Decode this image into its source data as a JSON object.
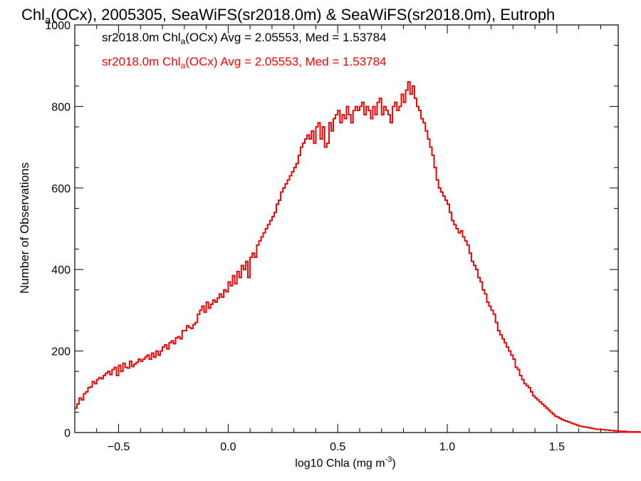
{
  "chart_data": {
    "type": "histogram",
    "title_main": "Chl",
    "title_sub": "a",
    "title_rest": "(OCx), 2005305, SeaWiFS(sr2018.0m) & SeaWiFS(sr2018.0m), Eutroph",
    "xlabel_main": "log10 Chla (mg m",
    "xlabel_sup": "-3",
    "xlabel_close": ")",
    "ylabel": "Number of Observations",
    "xlim": [
      -0.7,
      1.78
    ],
    "ylim": [
      0,
      1000
    ],
    "xticks": [
      -0.5,
      0.0,
      0.5,
      1.0,
      1.5
    ],
    "xtick_labels": [
      "−0.5",
      "0.0",
      "0.5",
      "1.0",
      "1.5"
    ],
    "yticks": [
      0,
      200,
      400,
      600,
      800,
      1000
    ],
    "ytick_labels": [
      "0",
      "200",
      "400",
      "600",
      "800",
      "1000"
    ],
    "annotations": [
      {
        "pre": "sr2018.0m Chl",
        "sub": "a",
        "post": "(OCx) Avg = 2.05553, Med = 1.53784",
        "color": "#000000"
      },
      {
        "pre": "sr2018.0m Chl",
        "sub": "a",
        "post": "(OCx) Avg = 2.05553, Med = 1.53784",
        "color": "#ff0000"
      }
    ],
    "series": [
      {
        "color": "#000000",
        "values": []
      },
      {
        "color": "#ff0000",
        "values": []
      }
    ],
    "bin_width": 0.01,
    "x_start": -0.7,
    "values": [
      60,
      70,
      85,
      80,
      95,
      100,
      110,
      112,
      125,
      120,
      130,
      135,
      132,
      140,
      145,
      150,
      142,
      155,
      160,
      140,
      165,
      150,
      170,
      160,
      158,
      175,
      162,
      168,
      172,
      180,
      175,
      180,
      185,
      190,
      180,
      195,
      185,
      200,
      190,
      200,
      210,
      215,
      205,
      220,
      225,
      218,
      232,
      235,
      230,
      250,
      250,
      262,
      258,
      255,
      265,
      270,
      290,
      300,
      310,
      295,
      320,
      305,
      315,
      325,
      320,
      330,
      340,
      332,
      350,
      345,
      370,
      360,
      385,
      365,
      395,
      380,
      410,
      400,
      420,
      380,
      430,
      440,
      430,
      460,
      470,
      480,
      490,
      500,
      510,
      520,
      530,
      540,
      560,
      570,
      590,
      600,
      610,
      620,
      630,
      640,
      650,
      660,
      680,
      700,
      710,
      720,
      730,
      720,
      740,
      710,
      750,
      760,
      720,
      750,
      700,
      710,
      760,
      740,
      770,
      780,
      790,
      760,
      780,
      770,
      800,
      780,
      760,
      790,
      800,
      790,
      800,
      810,
      780,
      800,
      790,
      770,
      800,
      780,
      810,
      820,
      780,
      800,
      790,
      780,
      760,
      800,
      810,
      790,
      800,
      830,
      810,
      840,
      860,
      830,
      850,
      820,
      800,
      790,
      770,
      760,
      740,
      720,
      700,
      680,
      650,
      620,
      600,
      590,
      580,
      570,
      560,
      540,
      520,
      510,
      500,
      490,
      495,
      480,
      470,
      460,
      440,
      420,
      410,
      400,
      380,
      370,
      350,
      340,
      320,
      310,
      300,
      290,
      270,
      250,
      240,
      230,
      220,
      210,
      200,
      190,
      180,
      160,
      155,
      140,
      130,
      120,
      115,
      110,
      100,
      90,
      85,
      80,
      75,
      70,
      65,
      60,
      55,
      50,
      45,
      40,
      38,
      35,
      32,
      30,
      28,
      26,
      24,
      22,
      20,
      18,
      16,
      15,
      14,
      13,
      12,
      11,
      10,
      9,
      8,
      8,
      7,
      7,
      6,
      6,
      5,
      5,
      4,
      4,
      4,
      3,
      3,
      3,
      3,
      2,
      2,
      2,
      2,
      2,
      2,
      1,
      1,
      1,
      1,
      1,
      1,
      1,
      1,
      1,
      1,
      1
    ]
  }
}
